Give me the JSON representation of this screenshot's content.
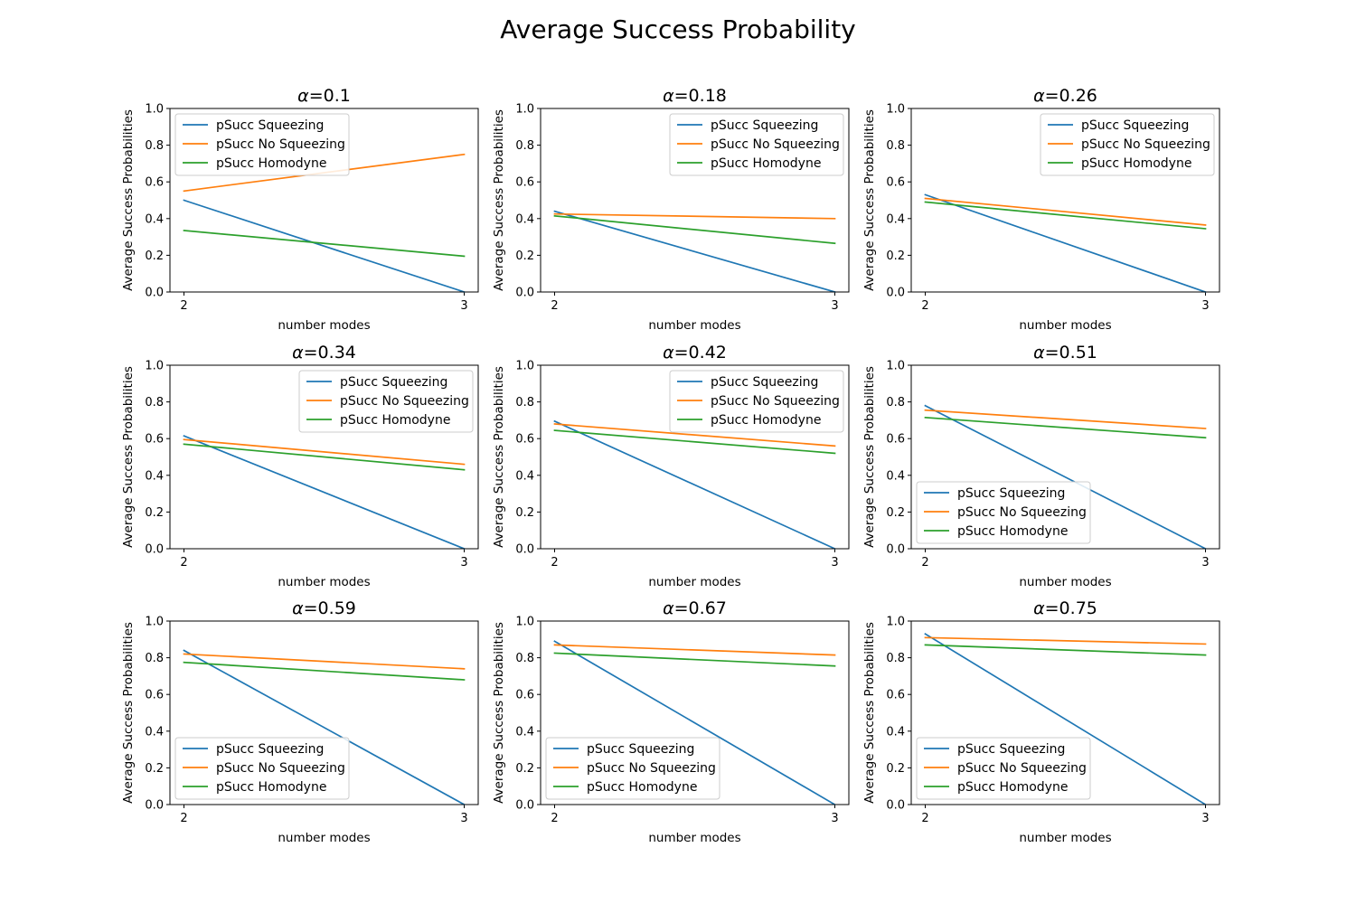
{
  "figure": {
    "title": "Average Success Probability"
  },
  "colors": {
    "squeezing": "#1f77b4",
    "no_squeezing": "#ff7f0e",
    "homodyne": "#2ca02c"
  },
  "chart_data": [
    {
      "type": "line",
      "title_symbol": "α",
      "title_value": "=0.1",
      "xlabel": "number modes",
      "ylabel": "Average Success Probabilities",
      "x": [
        2,
        3
      ],
      "xlim": [
        1.95,
        3.05
      ],
      "ylim": [
        0,
        1
      ],
      "legend": "upper left",
      "series": [
        {
          "name": "pSucc Squeezing",
          "values": [
            0.5,
            0.0
          ]
        },
        {
          "name": "pSucc No Squeezing",
          "values": [
            0.55,
            0.75
          ]
        },
        {
          "name": "pSucc Homodyne",
          "values": [
            0.335,
            0.195
          ]
        }
      ]
    },
    {
      "type": "line",
      "title_symbol": "α",
      "title_value": "=0.18",
      "xlabel": "number modes",
      "ylabel": "Average Success Probabilities",
      "x": [
        2,
        3
      ],
      "xlim": [
        1.95,
        3.05
      ],
      "ylim": [
        0,
        1
      ],
      "legend": "upper right",
      "series": [
        {
          "name": "pSucc Squeezing",
          "values": [
            0.44,
            0.0
          ]
        },
        {
          "name": "pSucc No Squeezing",
          "values": [
            0.425,
            0.4
          ]
        },
        {
          "name": "pSucc Homodyne",
          "values": [
            0.415,
            0.265
          ]
        }
      ]
    },
    {
      "type": "line",
      "title_symbol": "α",
      "title_value": "=0.26",
      "xlabel": "number modes",
      "ylabel": "Average Success Probabilities",
      "x": [
        2,
        3
      ],
      "xlim": [
        1.95,
        3.05
      ],
      "ylim": [
        0,
        1
      ],
      "legend": "upper right",
      "series": [
        {
          "name": "pSucc Squeezing",
          "values": [
            0.53,
            0.0
          ]
        },
        {
          "name": "pSucc No Squeezing",
          "values": [
            0.51,
            0.365
          ]
        },
        {
          "name": "pSucc Homodyne",
          "values": [
            0.49,
            0.345
          ]
        }
      ]
    },
    {
      "type": "line",
      "title_symbol": "α",
      "title_value": "=0.34",
      "xlabel": "number modes",
      "ylabel": "Average Success Probabilities",
      "x": [
        2,
        3
      ],
      "xlim": [
        1.95,
        3.05
      ],
      "ylim": [
        0,
        1
      ],
      "legend": "upper right",
      "series": [
        {
          "name": "pSucc Squeezing",
          "values": [
            0.615,
            0.0
          ]
        },
        {
          "name": "pSucc No Squeezing",
          "values": [
            0.595,
            0.46
          ]
        },
        {
          "name": "pSucc Homodyne",
          "values": [
            0.57,
            0.43
          ]
        }
      ]
    },
    {
      "type": "line",
      "title_symbol": "α",
      "title_value": "=0.42",
      "xlabel": "number modes",
      "ylabel": "Average Success Probabilities",
      "x": [
        2,
        3
      ],
      "xlim": [
        1.95,
        3.05
      ],
      "ylim": [
        0,
        1
      ],
      "legend": "upper right",
      "series": [
        {
          "name": "pSucc Squeezing",
          "values": [
            0.695,
            0.0
          ]
        },
        {
          "name": "pSucc No Squeezing",
          "values": [
            0.68,
            0.56
          ]
        },
        {
          "name": "pSucc Homodyne",
          "values": [
            0.645,
            0.52
          ]
        }
      ]
    },
    {
      "type": "line",
      "title_symbol": "α",
      "title_value": "=0.51",
      "xlabel": "number modes",
      "ylabel": "Average Success Probabilities",
      "x": [
        2,
        3
      ],
      "xlim": [
        1.95,
        3.05
      ],
      "ylim": [
        0,
        1
      ],
      "legend": "lower left",
      "series": [
        {
          "name": "pSucc Squeezing",
          "values": [
            0.78,
            0.0
          ]
        },
        {
          "name": "pSucc No Squeezing",
          "values": [
            0.755,
            0.655
          ]
        },
        {
          "name": "pSucc Homodyne",
          "values": [
            0.715,
            0.605
          ]
        }
      ]
    },
    {
      "type": "line",
      "title_symbol": "α",
      "title_value": "=0.59",
      "xlabel": "number modes",
      "ylabel": "Average Success Probabilities",
      "x": [
        2,
        3
      ],
      "xlim": [
        1.95,
        3.05
      ],
      "ylim": [
        0,
        1
      ],
      "legend": "lower left",
      "series": [
        {
          "name": "pSucc Squeezing",
          "values": [
            0.84,
            0.0
          ]
        },
        {
          "name": "pSucc No Squeezing",
          "values": [
            0.82,
            0.74
          ]
        },
        {
          "name": "pSucc Homodyne",
          "values": [
            0.775,
            0.68
          ]
        }
      ]
    },
    {
      "type": "line",
      "title_symbol": "α",
      "title_value": "=0.67",
      "xlabel": "number modes",
      "ylabel": "Average Success Probabilities",
      "x": [
        2,
        3
      ],
      "xlim": [
        1.95,
        3.05
      ],
      "ylim": [
        0,
        1
      ],
      "legend": "lower left",
      "series": [
        {
          "name": "pSucc Squeezing",
          "values": [
            0.89,
            0.0
          ]
        },
        {
          "name": "pSucc No Squeezing",
          "values": [
            0.87,
            0.815
          ]
        },
        {
          "name": "pSucc Homodyne",
          "values": [
            0.825,
            0.755
          ]
        }
      ]
    },
    {
      "type": "line",
      "title_symbol": "α",
      "title_value": "=0.75",
      "xlabel": "number modes",
      "ylabel": "Average Success Probabilities",
      "x": [
        2,
        3
      ],
      "xlim": [
        1.95,
        3.05
      ],
      "ylim": [
        0,
        1
      ],
      "legend": "lower left",
      "series": [
        {
          "name": "pSucc Squeezing",
          "values": [
            0.93,
            0.0
          ]
        },
        {
          "name": "pSucc No Squeezing",
          "values": [
            0.91,
            0.875
          ]
        },
        {
          "name": "pSucc Homodyne",
          "values": [
            0.87,
            0.815
          ]
        }
      ]
    }
  ]
}
